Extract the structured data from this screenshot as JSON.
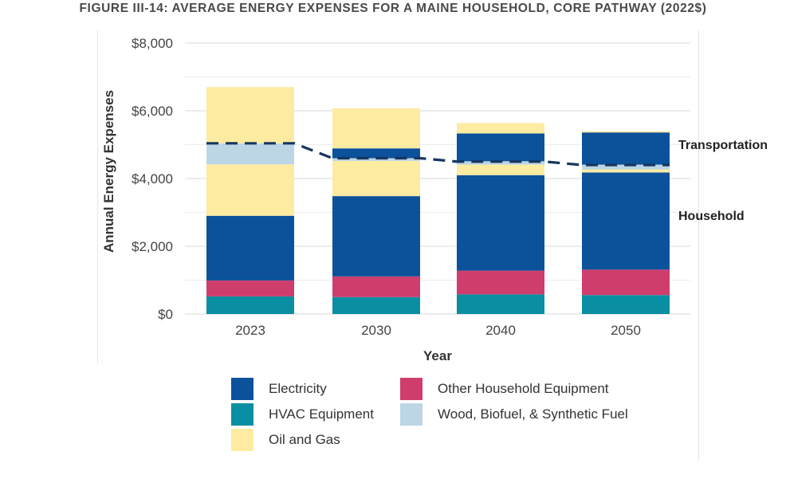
{
  "title": "FIGURE III-14: AVERAGE ENERGY EXPENSES FOR A MAINE HOUSEHOLD, CORE PATHWAY (2022$)",
  "colors": {
    "electricity": "#0b529b",
    "hvac": "#0a8ea2",
    "oil_gas": "#fdeba1",
    "other_equipment": "#cf3d6c",
    "wood": "#bcd6e6",
    "dashed_line": "#17365f",
    "grid": "#e6e6e6"
  },
  "chart_data": {
    "type": "bar",
    "stacked": true,
    "xlabel": "Year",
    "ylabel": "Annual Energy Expenses",
    "ylim": [
      0,
      8000
    ],
    "yticks": [
      0,
      2000,
      4000,
      6000,
      8000
    ],
    "ytick_labels": [
      "$0",
      "$2,000",
      "$4,000",
      "$6,000",
      "$8,000"
    ],
    "categories": [
      "2023",
      "2030",
      "2040",
      "2050"
    ],
    "grid": true,
    "legend_position": "bottom",
    "series": [
      {
        "name": "HVAC Equipment",
        "color_key": "hvac",
        "values": [
          520,
          500,
          580,
          560
        ]
      },
      {
        "name": "Other Household Equipment",
        "color_key": "other_equipment",
        "values": [
          470,
          610,
          700,
          750
        ]
      },
      {
        "name": "Electricity",
        "color_key": "electricity",
        "values": [
          1910,
          2370,
          2820,
          2870
        ]
      },
      {
        "name": "Oil and Gas",
        "color_key": "oil_gas",
        "values": [
          1520,
          1040,
          310,
          90
        ]
      },
      {
        "name": "Wood, Biofuel, & Synthetic Fuel",
        "color_key": "wood",
        "values": [
          620,
          80,
          100,
          140
        ]
      },
      {
        "name": "Electricity",
        "color_key": "electricity",
        "values": [
          0,
          290,
          820,
          950
        ]
      },
      {
        "name": "Oil and Gas",
        "color_key": "oil_gas",
        "values": [
          1660,
          1180,
          310,
          40
        ]
      }
    ],
    "divider_line": {
      "style": "dashed",
      "values": [
        5040,
        4600,
        4500,
        4400
      ]
    },
    "annotations": [
      "Transportation",
      "Household"
    ]
  },
  "legend": [
    {
      "label": "Electricity",
      "color_key": "electricity"
    },
    {
      "label": "Other Household Equipment",
      "color_key": "other_equipment"
    },
    {
      "label": "HVAC Equipment",
      "color_key": "hvac"
    },
    {
      "label": "Wood, Biofuel, & Synthetic Fuel",
      "color_key": "wood"
    },
    {
      "label": "Oil and Gas",
      "color_key": "oil_gas"
    }
  ]
}
